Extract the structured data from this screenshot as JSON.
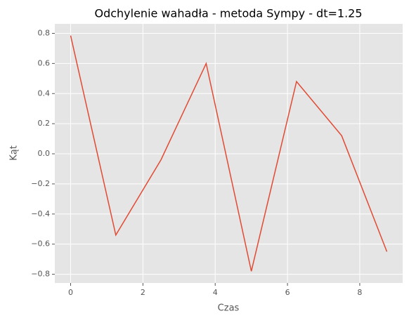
{
  "chart_data": {
    "type": "line",
    "title": "Odchylenie wahadła - metoda Sympy - dt=1.25",
    "x_label": "Czas",
    "y_label": "Kąt",
    "x": [
      0,
      1.25,
      2.5,
      3.75,
      5,
      6.25,
      7.5,
      8.75
    ],
    "series": [
      {
        "name": "Kąt",
        "color": "#E24A33",
        "values": [
          0.785,
          -0.54,
          -0.04,
          0.6,
          -0.78,
          0.48,
          0.12,
          -0.65
        ]
      }
    ],
    "xlim": [
      -0.4375,
      9.1875
    ],
    "xticks": [
      0,
      2,
      4,
      6,
      8
    ],
    "ylim": [
      -0.858,
      0.863
    ],
    "yticks": [
      {
        "value": -0.8,
        "label": "−0.8"
      },
      {
        "value": -0.6,
        "label": "−0.6"
      },
      {
        "value": -0.4,
        "label": "−0.4"
      },
      {
        "value": -0.2,
        "label": "−0.2"
      },
      {
        "value": 0,
        "label": "0.0"
      },
      0.2,
      0.4,
      0.6,
      0.8
    ],
    "grid": true
  }
}
